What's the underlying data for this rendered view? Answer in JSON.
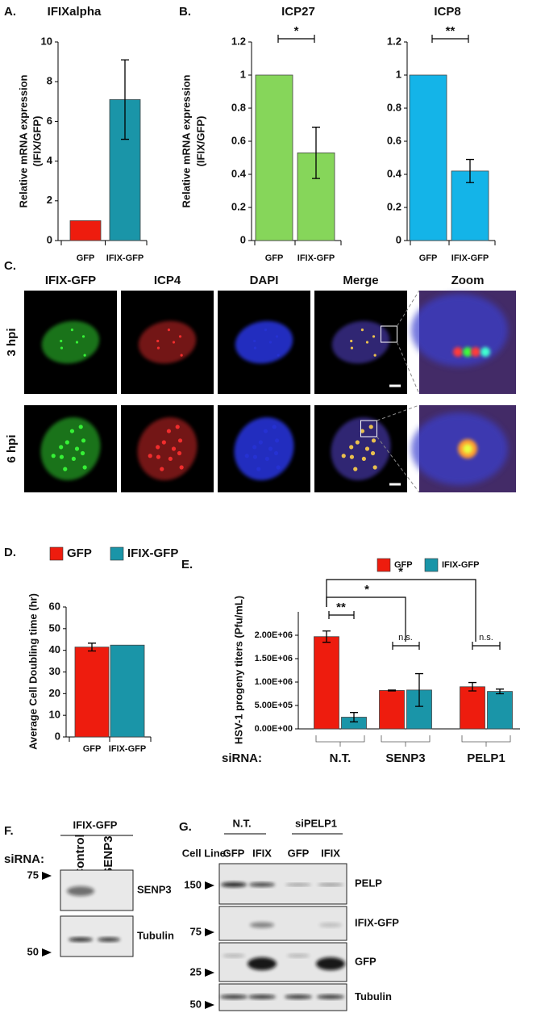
{
  "panel_labels": [
    "A.",
    "B.",
    "C.",
    "D.",
    "E.",
    "F.",
    "G."
  ],
  "chart_data": [
    {
      "type": "bar",
      "title": "IFIXalpha",
      "ylabel": [
        "Relative  mRNA expression",
        "(IFIX/GFP)"
      ],
      "categories": [
        "GFP",
        "IFIX-GFP"
      ],
      "values": [
        1,
        7.1
      ],
      "errors": [
        null,
        2.0
      ],
      "colors": [
        "#ee1c0e",
        "#1a95a8"
      ],
      "ylim": [
        0,
        10
      ],
      "yticks": [
        0,
        2,
        4,
        6,
        8,
        10
      ],
      "grid": false,
      "annotations": []
    },
    {
      "type": "bar",
      "title": "ICP27",
      "ylabel": [
        "Relative  mRNA expression",
        "(IFIX/GFP)"
      ],
      "categories": [
        "GFP",
        "IFIX-GFP"
      ],
      "values": [
        1,
        0.53
      ],
      "errors": [
        null,
        0.155
      ],
      "colors": [
        "#86d65a",
        "#86d65a"
      ],
      "ylim": [
        0,
        1.2
      ],
      "yticks": [
        0,
        0.2,
        0.4,
        0.6,
        0.8,
        1,
        1.2
      ],
      "grid": false,
      "annotations": [
        {
          "text": "*"
        }
      ]
    },
    {
      "type": "bar",
      "title": "ICP8",
      "categories": [
        "GFP",
        "IFIX-GFP"
      ],
      "values": [
        1,
        0.42
      ],
      "errors": [
        null,
        0.07
      ],
      "colors": [
        "#14b4e8",
        "#14b4e8"
      ],
      "ylim": [
        0,
        1.2
      ],
      "yticks": [
        0,
        0.2,
        0.4,
        0.6,
        0.8,
        1,
        1.2
      ],
      "grid": false,
      "annotations": [
        {
          "text": "**"
        }
      ]
    },
    {
      "type": "bar",
      "ylabel": [
        "Average Cell Doubling time (hr)"
      ],
      "legend": [
        {
          "name": "GFP",
          "color": "#ee1c0e"
        },
        {
          "name": "IFIX-GFP",
          "color": "#1a95a8"
        }
      ],
      "categories": [
        "GFP",
        "IFIX-GFP"
      ],
      "values": [
        41.5,
        42.4
      ],
      "errors": [
        1.8,
        null
      ],
      "colors": [
        "#ee1c0e",
        "#1a95a8"
      ],
      "ylim": [
        0,
        60
      ],
      "yticks": [
        0,
        10,
        20,
        30,
        40,
        50,
        60
      ],
      "grid": false,
      "annotations": []
    },
    {
      "type": "grouped-bar",
      "ylabel": [
        "HSV-1 progeny titers (Pfu/mL)"
      ],
      "xlabel": "siRNA:",
      "categories": [
        "N.T.",
        "SENP3",
        "PELP1"
      ],
      "series": [
        {
          "name": "GFP",
          "color": "#ee1c0e",
          "values": [
            1970000,
            820000,
            900000
          ],
          "errors": [
            120000,
            10000,
            90000
          ]
        },
        {
          "name": "IFIX-GFP",
          "color": "#1a95a8",
          "values": [
            250000,
            830000,
            800000
          ],
          "errors": [
            100000,
            350000,
            50000
          ]
        }
      ],
      "ylim": [
        0,
        2500000
      ],
      "yticks": [
        {
          "value": 0,
          "label": "0.00E+00"
        },
        {
          "value": 500000,
          "label": "5.00E+05"
        },
        {
          "value": 1000000,
          "label": "1.00E+06"
        },
        {
          "value": 1500000,
          "label": "1.50E+06"
        },
        {
          "value": 2000000,
          "label": "2.00E+06"
        }
      ],
      "grid": false,
      "annotations": [
        {
          "text": "**"
        },
        {
          "text": "*"
        },
        {
          "text": "*"
        },
        {
          "text": "n.s."
        },
        {
          "text": "n.s."
        }
      ]
    }
  ],
  "panel_c": {
    "columns": [
      "IFIX-GFP",
      "ICP4",
      "DAPI",
      "Merge",
      "Zoom"
    ],
    "rows": [
      "3 hpi",
      "6 hpi"
    ]
  },
  "panel_f": {
    "group": "IFIX-GFP",
    "siRNA_label": "siRNA:",
    "lanes": [
      "Control",
      "SENP3"
    ],
    "bands": [
      "SENP3",
      "Tubulin"
    ],
    "markers": [
      75,
      50
    ]
  },
  "panel_g": {
    "groups": [
      "N.T.",
      "siPELP1"
    ],
    "cell_line_label": "Cell Line:",
    "lanes": [
      "GFP",
      "IFIX",
      "GFP",
      "IFIX"
    ],
    "bands": [
      "PELP",
      "IFIX-GFP",
      "GFP",
      "Tubulin"
    ],
    "markers": [
      150,
      75,
      25,
      50
    ]
  }
}
